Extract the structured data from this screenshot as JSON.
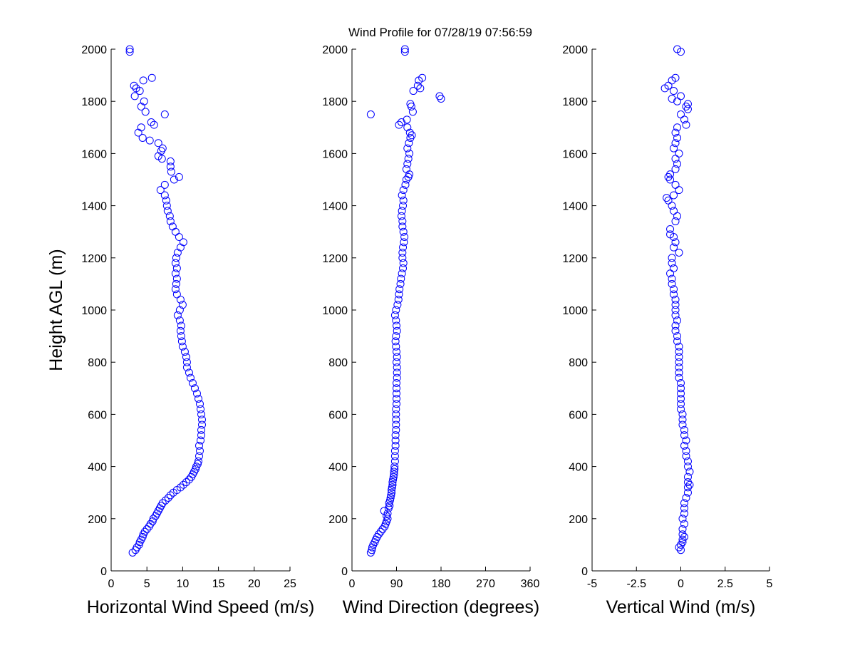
{
  "figure": {
    "title": "Wind Profile for  07/28/19 07:56:59",
    "marker_color": "#0000ff",
    "marker": "circle-open"
  },
  "chart_data": [
    {
      "type": "scatter",
      "xlabel": "Horizontal Wind Speed (m/s)",
      "ylabel": "Height AGL (m)",
      "xlim": [
        0,
        25
      ],
      "ylim": [
        0,
        2000
      ],
      "xticks": [
        "0",
        "5",
        "10",
        "15",
        "20",
        "25"
      ],
      "yticks": [
        "0",
        "200",
        "400",
        "600",
        "800",
        "1000",
        "1200",
        "1400",
        "1600",
        "1800",
        "2000"
      ],
      "grid": false,
      "points": [
        [
          3.0,
          70
        ],
        [
          3.4,
          80
        ],
        [
          3.6,
          90
        ],
        [
          3.9,
          100
        ],
        [
          4.0,
          110
        ],
        [
          4.2,
          120
        ],
        [
          4.4,
          130
        ],
        [
          4.5,
          140
        ],
        [
          4.7,
          150
        ],
        [
          5.0,
          160
        ],
        [
          5.3,
          170
        ],
        [
          5.5,
          180
        ],
        [
          5.8,
          190
        ],
        [
          5.9,
          200
        ],
        [
          6.2,
          210
        ],
        [
          6.4,
          220
        ],
        [
          6.6,
          230
        ],
        [
          6.8,
          240
        ],
        [
          7.0,
          250
        ],
        [
          7.2,
          260
        ],
        [
          7.6,
          270
        ],
        [
          8.0,
          280
        ],
        [
          8.3,
          290
        ],
        [
          8.7,
          300
        ],
        [
          9.2,
          310
        ],
        [
          9.7,
          320
        ],
        [
          10.1,
          330
        ],
        [
          10.5,
          340
        ],
        [
          10.9,
          350
        ],
        [
          11.2,
          360
        ],
        [
          11.4,
          370
        ],
        [
          11.6,
          380
        ],
        [
          11.8,
          390
        ],
        [
          11.9,
          400
        ],
        [
          12.1,
          410
        ],
        [
          12.2,
          420
        ],
        [
          12.3,
          440
        ],
        [
          12.4,
          460
        ],
        [
          12.3,
          480
        ],
        [
          12.5,
          500
        ],
        [
          12.6,
          520
        ],
        [
          12.6,
          540
        ],
        [
          12.7,
          560
        ],
        [
          12.7,
          580
        ],
        [
          12.6,
          600
        ],
        [
          12.5,
          620
        ],
        [
          12.4,
          640
        ],
        [
          12.2,
          660
        ],
        [
          12.0,
          680
        ],
        [
          11.7,
          700
        ],
        [
          11.4,
          720
        ],
        [
          11.1,
          740
        ],
        [
          10.9,
          760
        ],
        [
          10.6,
          780
        ],
        [
          10.6,
          800
        ],
        [
          10.5,
          820
        ],
        [
          10.3,
          840
        ],
        [
          10.0,
          860
        ],
        [
          9.9,
          880
        ],
        [
          9.8,
          900
        ],
        [
          9.7,
          920
        ],
        [
          9.8,
          940
        ],
        [
          9.6,
          960
        ],
        [
          9.3,
          980
        ],
        [
          9.6,
          1000
        ],
        [
          10.0,
          1020
        ],
        [
          9.7,
          1040
        ],
        [
          9.2,
          1060
        ],
        [
          9.0,
          1080
        ],
        [
          9.1,
          1100
        ],
        [
          9.2,
          1120
        ],
        [
          9.0,
          1140
        ],
        [
          9.2,
          1160
        ],
        [
          9.0,
          1180
        ],
        [
          9.1,
          1200
        ],
        [
          9.3,
          1220
        ],
        [
          9.7,
          1240
        ],
        [
          10.1,
          1260
        ],
        [
          9.5,
          1280
        ],
        [
          9.0,
          1300
        ],
        [
          8.6,
          1320
        ],
        [
          8.3,
          1340
        ],
        [
          8.2,
          1360
        ],
        [
          7.9,
          1380
        ],
        [
          7.8,
          1400
        ],
        [
          7.7,
          1420
        ],
        [
          7.5,
          1440
        ],
        [
          6.9,
          1460
        ],
        [
          7.5,
          1480
        ],
        [
          8.8,
          1500
        ],
        [
          9.5,
          1510
        ],
        [
          8.4,
          1530
        ],
        [
          8.3,
          1550
        ],
        [
          8.3,
          1570
        ],
        [
          7.1,
          1580
        ],
        [
          6.6,
          1590
        ],
        [
          7.0,
          1610
        ],
        [
          7.2,
          1620
        ],
        [
          6.6,
          1640
        ],
        [
          5.4,
          1650
        ],
        [
          4.4,
          1660
        ],
        [
          3.8,
          1680
        ],
        [
          4.2,
          1700
        ],
        [
          6.0,
          1710
        ],
        [
          5.6,
          1720
        ],
        [
          7.5,
          1750
        ],
        [
          4.8,
          1760
        ],
        [
          4.2,
          1780
        ],
        [
          4.6,
          1800
        ],
        [
          3.3,
          1820
        ],
        [
          4.0,
          1840
        ],
        [
          3.5,
          1850
        ],
        [
          3.2,
          1860
        ],
        [
          4.5,
          1880
        ],
        [
          5.7,
          1890
        ],
        [
          2.6,
          1990
        ],
        [
          2.6,
          2000
        ]
      ]
    },
    {
      "type": "scatter",
      "xlabel": "Wind Direction (degrees)",
      "ylabel": "",
      "xlim": [
        0,
        360
      ],
      "ylim": [
        0,
        2000
      ],
      "xticks": [
        "0",
        "90",
        "180",
        "270",
        "360"
      ],
      "yticks": [
        "0",
        "200",
        "400",
        "600",
        "800",
        "1000",
        "1200",
        "1400",
        "1600",
        "1800",
        "2000"
      ],
      "grid": false,
      "points": [
        [
          38,
          70
        ],
        [
          40,
          80
        ],
        [
          41,
          90
        ],
        [
          43,
          100
        ],
        [
          46,
          110
        ],
        [
          48,
          120
        ],
        [
          51,
          130
        ],
        [
          54,
          140
        ],
        [
          58,
          150
        ],
        [
          62,
          160
        ],
        [
          66,
          170
        ],
        [
          68,
          180
        ],
        [
          70,
          190
        ],
        [
          72,
          200
        ],
        [
          70,
          210
        ],
        [
          72,
          220
        ],
        [
          65,
          230
        ],
        [
          74,
          240
        ],
        [
          76,
          250
        ],
        [
          75,
          260
        ],
        [
          77,
          270
        ],
        [
          78,
          280
        ],
        [
          79,
          290
        ],
        [
          80,
          300
        ],
        [
          80,
          310
        ],
        [
          81,
          320
        ],
        [
          82,
          330
        ],
        [
          82,
          340
        ],
        [
          83,
          350
        ],
        [
          84,
          360
        ],
        [
          85,
          370
        ],
        [
          85,
          380
        ],
        [
          86,
          390
        ],
        [
          86,
          400
        ],
        [
          87,
          420
        ],
        [
          87,
          440
        ],
        [
          87,
          460
        ],
        [
          88,
          480
        ],
        [
          88,
          500
        ],
        [
          88,
          520
        ],
        [
          89,
          540
        ],
        [
          89,
          560
        ],
        [
          89,
          580
        ],
        [
          89,
          600
        ],
        [
          89,
          620
        ],
        [
          90,
          640
        ],
        [
          90,
          660
        ],
        [
          90,
          680
        ],
        [
          90,
          700
        ],
        [
          90,
          720
        ],
        [
          91,
          740
        ],
        [
          91,
          760
        ],
        [
          91,
          780
        ],
        [
          90,
          800
        ],
        [
          91,
          820
        ],
        [
          90,
          840
        ],
        [
          89,
          860
        ],
        [
          88,
          880
        ],
        [
          89,
          900
        ],
        [
          91,
          920
        ],
        [
          90,
          940
        ],
        [
          89,
          960
        ],
        [
          87,
          980
        ],
        [
          89,
          1000
        ],
        [
          92,
          1020
        ],
        [
          94,
          1040
        ],
        [
          95,
          1060
        ],
        [
          96,
          1080
        ],
        [
          98,
          1100
        ],
        [
          99,
          1120
        ],
        [
          101,
          1140
        ],
        [
          103,
          1160
        ],
        [
          104,
          1180
        ],
        [
          102,
          1200
        ],
        [
          102,
          1220
        ],
        [
          103,
          1240
        ],
        [
          105,
          1260
        ],
        [
          106,
          1280
        ],
        [
          104,
          1300
        ],
        [
          102,
          1320
        ],
        [
          102,
          1340
        ],
        [
          100,
          1360
        ],
        [
          101,
          1380
        ],
        [
          103,
          1400
        ],
        [
          104,
          1420
        ],
        [
          101,
          1440
        ],
        [
          104,
          1460
        ],
        [
          108,
          1480
        ],
        [
          110,
          1500
        ],
        [
          114,
          1510
        ],
        [
          116,
          1520
        ],
        [
          110,
          1540
        ],
        [
          112,
          1560
        ],
        [
          114,
          1580
        ],
        [
          116,
          1600
        ],
        [
          112,
          1620
        ],
        [
          115,
          1640
        ],
        [
          118,
          1660
        ],
        [
          121,
          1670
        ],
        [
          117,
          1680
        ],
        [
          112,
          1700
        ],
        [
          95,
          1710
        ],
        [
          100,
          1720
        ],
        [
          111,
          1730
        ],
        [
          38,
          1750
        ],
        [
          123,
          1760
        ],
        [
          120,
          1780
        ],
        [
          118,
          1790
        ],
        [
          180,
          1810
        ],
        [
          177,
          1820
        ],
        [
          124,
          1840
        ],
        [
          138,
          1850
        ],
        [
          133,
          1860
        ],
        [
          135,
          1880
        ],
        [
          142,
          1890
        ],
        [
          107,
          1990
        ],
        [
          107,
          2000
        ]
      ]
    },
    {
      "type": "scatter",
      "xlabel": "Vertical Wind (m/s)",
      "ylabel": "",
      "xlim": [
        -5,
        5
      ],
      "ylim": [
        0,
        2000
      ],
      "xticks": [
        "-5",
        "-2.5",
        "0",
        "2.5",
        "5"
      ],
      "yticks": [
        "0",
        "200",
        "400",
        "600",
        "800",
        "1000",
        "1200",
        "1400",
        "1600",
        "1800",
        "2000"
      ],
      "grid": false,
      "points": [
        [
          0.0,
          80
        ],
        [
          -0.1,
          90
        ],
        [
          0.0,
          100
        ],
        [
          0.1,
          110
        ],
        [
          0.1,
          120
        ],
        [
          0.2,
          130
        ],
        [
          0.1,
          140
        ],
        [
          0.1,
          160
        ],
        [
          0.2,
          180
        ],
        [
          0.1,
          200
        ],
        [
          0.2,
          220
        ],
        [
          0.2,
          240
        ],
        [
          0.2,
          260
        ],
        [
          0.3,
          280
        ],
        [
          0.4,
          300
        ],
        [
          0.4,
          320
        ],
        [
          0.5,
          330
        ],
        [
          0.4,
          340
        ],
        [
          0.4,
          360
        ],
        [
          0.5,
          380
        ],
        [
          0.4,
          400
        ],
        [
          0.4,
          420
        ],
        [
          0.3,
          440
        ],
        [
          0.3,
          460
        ],
        [
          0.2,
          480
        ],
        [
          0.3,
          500
        ],
        [
          0.2,
          520
        ],
        [
          0.2,
          540
        ],
        [
          0.1,
          560
        ],
        [
          0.1,
          580
        ],
        [
          0.1,
          600
        ],
        [
          0.0,
          620
        ],
        [
          0.0,
          640
        ],
        [
          0.0,
          660
        ],
        [
          0.0,
          680
        ],
        [
          0.0,
          700
        ],
        [
          0.0,
          720
        ],
        [
          -0.1,
          740
        ],
        [
          -0.1,
          760
        ],
        [
          -0.1,
          780
        ],
        [
          -0.1,
          800
        ],
        [
          -0.1,
          820
        ],
        [
          -0.1,
          840
        ],
        [
          -0.1,
          860
        ],
        [
          -0.2,
          880
        ],
        [
          -0.2,
          900
        ],
        [
          -0.3,
          920
        ],
        [
          -0.3,
          940
        ],
        [
          -0.2,
          960
        ],
        [
          -0.3,
          980
        ],
        [
          -0.3,
          1000
        ],
        [
          -0.3,
          1020
        ],
        [
          -0.3,
          1040
        ],
        [
          -0.4,
          1060
        ],
        [
          -0.4,
          1080
        ],
        [
          -0.5,
          1100
        ],
        [
          -0.5,
          1120
        ],
        [
          -0.6,
          1140
        ],
        [
          -0.4,
          1160
        ],
        [
          -0.5,
          1180
        ],
        [
          -0.5,
          1200
        ],
        [
          -0.1,
          1220
        ],
        [
          -0.4,
          1240
        ],
        [
          -0.3,
          1260
        ],
        [
          -0.4,
          1280
        ],
        [
          -0.6,
          1290
        ],
        [
          -0.6,
          1310
        ],
        [
          -0.3,
          1340
        ],
        [
          -0.2,
          1360
        ],
        [
          -0.4,
          1380
        ],
        [
          -0.5,
          1400
        ],
        [
          -0.7,
          1420
        ],
        [
          -0.8,
          1430
        ],
        [
          -0.4,
          1440
        ],
        [
          -0.1,
          1460
        ],
        [
          -0.3,
          1480
        ],
        [
          -0.6,
          1500
        ],
        [
          -0.7,
          1510
        ],
        [
          -0.6,
          1520
        ],
        [
          -0.3,
          1540
        ],
        [
          -0.2,
          1560
        ],
        [
          -0.3,
          1580
        ],
        [
          -0.1,
          1600
        ],
        [
          -0.4,
          1620
        ],
        [
          -0.3,
          1640
        ],
        [
          -0.2,
          1660
        ],
        [
          -0.3,
          1680
        ],
        [
          -0.2,
          1700
        ],
        [
          0.3,
          1710
        ],
        [
          0.2,
          1730
        ],
        [
          0.0,
          1750
        ],
        [
          0.4,
          1770
        ],
        [
          0.3,
          1780
        ],
        [
          0.4,
          1790
        ],
        [
          -0.2,
          1800
        ],
        [
          -0.5,
          1810
        ],
        [
          0.0,
          1820
        ],
        [
          -0.4,
          1840
        ],
        [
          -0.9,
          1850
        ],
        [
          -0.7,
          1860
        ],
        [
          -0.5,
          1880
        ],
        [
          -0.3,
          1890
        ],
        [
          -0.2,
          2000
        ],
        [
          0.0,
          1990
        ]
      ]
    }
  ]
}
